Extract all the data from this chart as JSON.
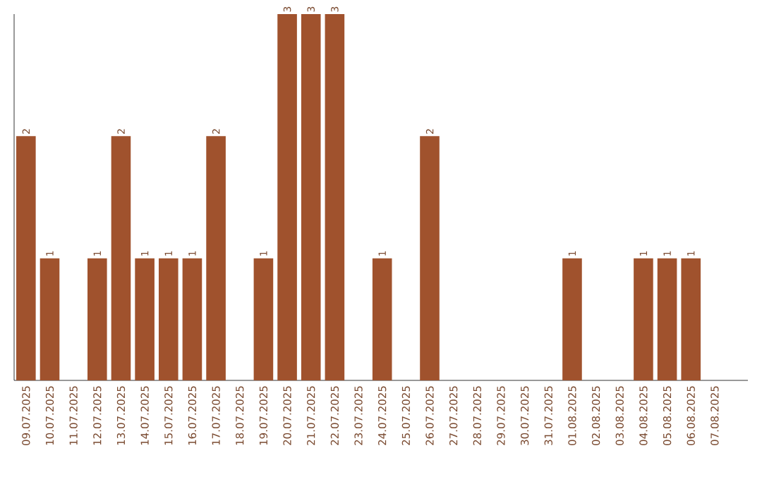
{
  "chart_data": {
    "type": "bar",
    "color": "#a0522d",
    "categories": [
      "09.07.2025",
      "10.07.2025",
      "11.07.2025",
      "12.07.2025",
      "13.07.2025",
      "14.07.2025",
      "15.07.2025",
      "16.07.2025",
      "17.07.2025",
      "18.07.2025",
      "19.07.2025",
      "20.07.2025",
      "21.07.2025",
      "22.07.2025",
      "23.07.2025",
      "24.07.2025",
      "25.07.2025",
      "26.07.2025",
      "27.07.2025",
      "28.07.2025",
      "29.07.2025",
      "30.07.2025",
      "31.07.2025",
      "01.08.2025",
      "02.08.2025",
      "03.08.2025",
      "04.08.2025",
      "05.08.2025",
      "06.08.2025",
      "07.08.2025"
    ],
    "values": [
      2,
      1,
      0,
      1,
      2,
      1,
      1,
      1,
      2,
      0,
      1,
      3,
      3,
      3,
      0,
      1,
      0,
      2,
      0,
      0,
      0,
      0,
      0,
      1,
      0,
      0,
      1,
      1,
      1,
      0
    ],
    "value_labels": [
      "2",
      "1",
      null,
      "1",
      "2",
      "1",
      "1",
      "1",
      "2",
      null,
      "1",
      "3",
      "3",
      "3",
      null,
      "1",
      null,
      "2",
      null,
      null,
      null,
      null,
      null,
      "1",
      null,
      null,
      "1",
      "1",
      "1",
      null
    ],
    "grid": false
  }
}
